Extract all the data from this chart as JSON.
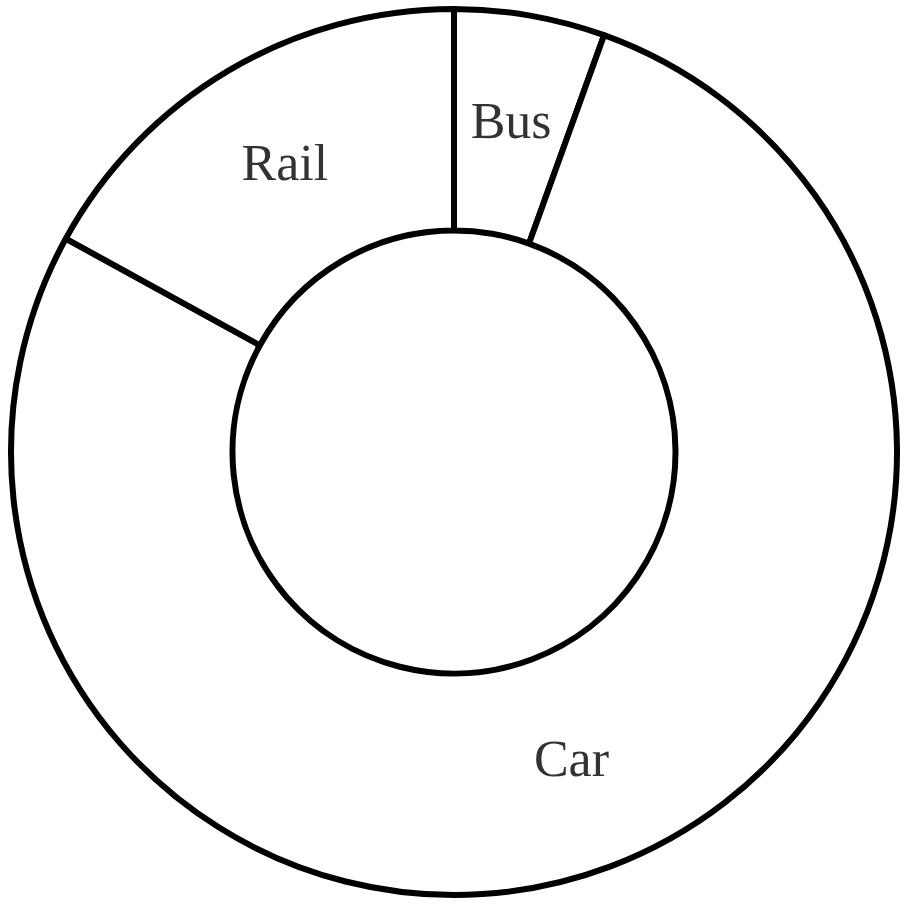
{
  "chart_data": {
    "type": "donut",
    "categories": [
      "Bus",
      "Car",
      "Rail"
    ],
    "values": [
      5.5,
      77.5,
      17
    ],
    "colors": [
      "#ffffff",
      "#ffffff",
      "#ffffff"
    ]
  }
}
